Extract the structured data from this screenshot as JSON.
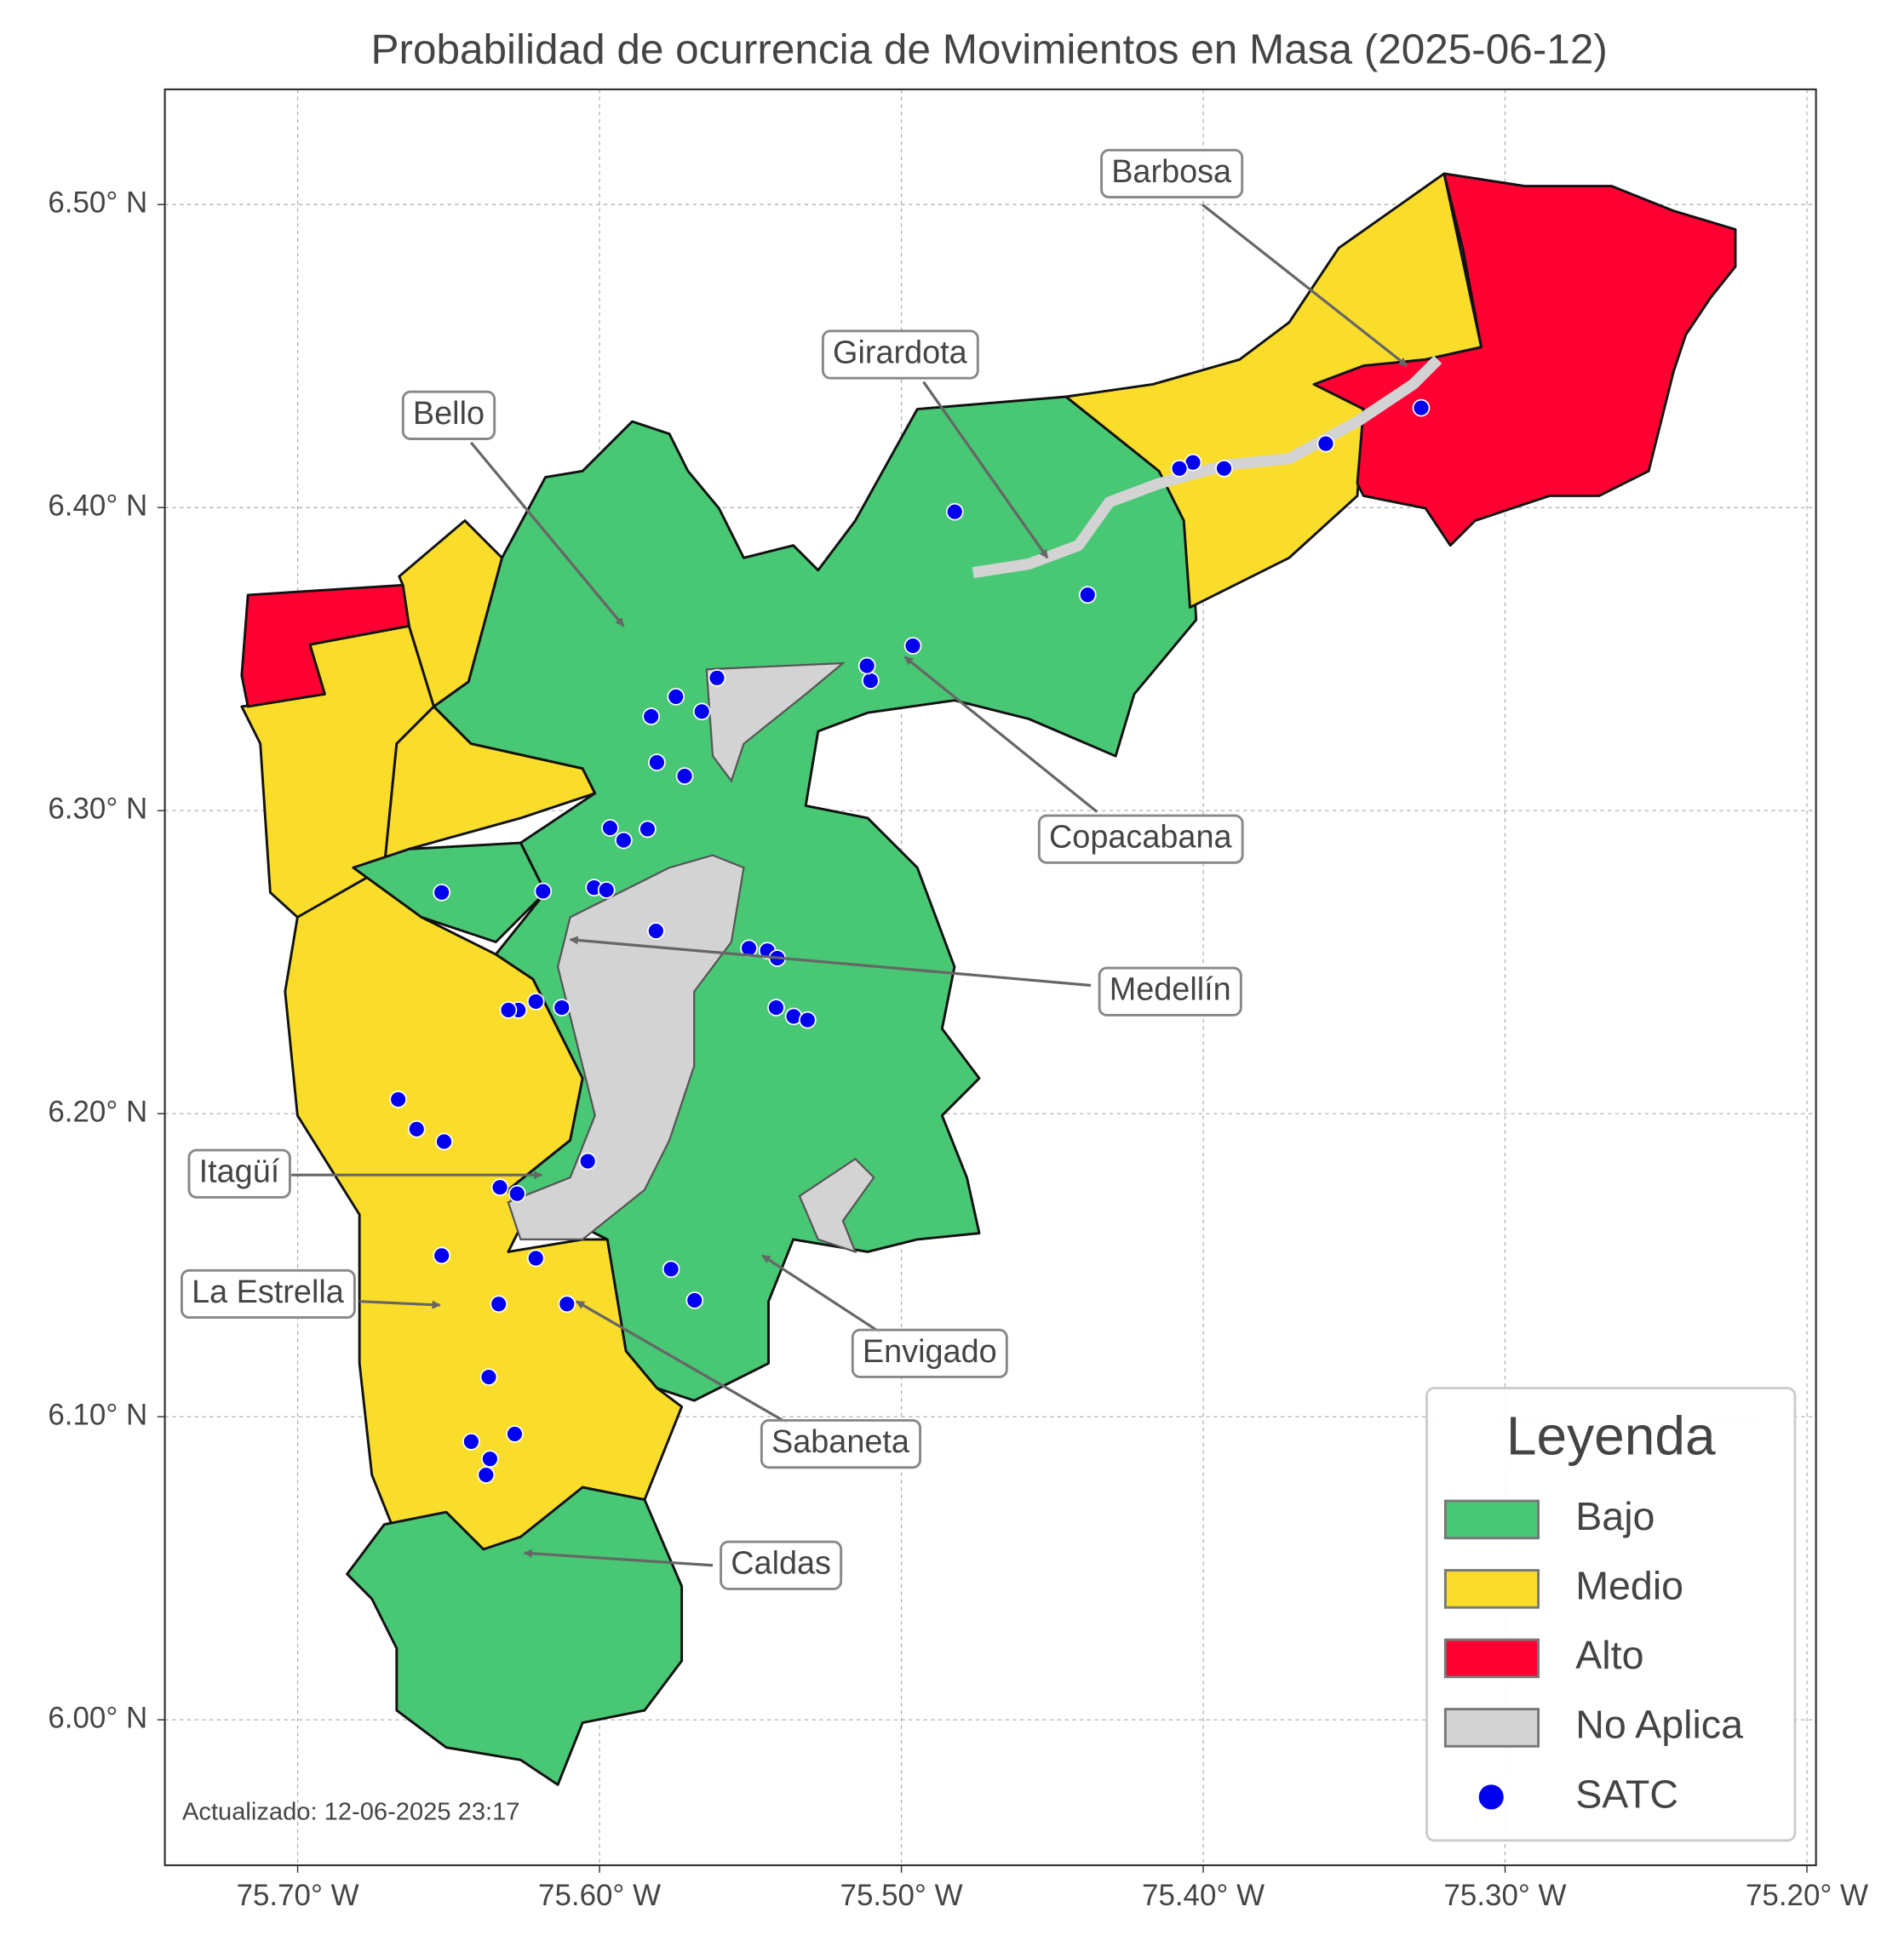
{
  "chart_data": {
    "type": "map",
    "title": "Probabilidad de ocurrencia de Movimientos en Masa (2025-06-12)",
    "xlim": [
      -75.744,
      -75.197
    ],
    "ylim": [
      5.952,
      6.538
    ],
    "xticks": [
      {
        "value": -75.7,
        "label": "75.70° W"
      },
      {
        "value": -75.6,
        "label": "75.60° W"
      },
      {
        "value": -75.5,
        "label": "75.50° W"
      },
      {
        "value": -75.4,
        "label": "75.40° W"
      },
      {
        "value": -75.3,
        "label": "75.30° W"
      },
      {
        "value": -75.2,
        "label": "75.20° W"
      }
    ],
    "yticks": [
      {
        "value": 6.0,
        "label": "6.00° N"
      },
      {
        "value": 6.1,
        "label": "6.10° N"
      },
      {
        "value": 6.2,
        "label": "6.20° N"
      },
      {
        "value": 6.3,
        "label": "6.30° N"
      },
      {
        "value": 6.4,
        "label": "6.40° N"
      },
      {
        "value": 6.5,
        "label": "6.50° N"
      }
    ],
    "grid": true,
    "annotations": [
      "Barbosa",
      "Girardota",
      "Bello",
      "Copacabana",
      "Medellín",
      "Itagüí",
      "La Estrella",
      "Envigado",
      "Sabaneta",
      "Caldas"
    ],
    "legend": {
      "title": "Leyenda",
      "loc": "lower right",
      "entries": [
        {
          "name": "Bajo",
          "color": "#48c774"
        },
        {
          "name": "Medio",
          "color": "#fadd2a"
        },
        {
          "name": "Alto",
          "color": "#ff0033"
        },
        {
          "name": "No Aplica",
          "color": "#d3d3d3"
        }
      ]
    },
    "series": [
      {
        "name": "SATC",
        "color": "#0000ee",
        "x": [
          -75.3278,
          -75.3594,
          -75.3931,
          -75.4034,
          -75.4079,
          -75.4823,
          -75.4383,
          -75.4962,
          -75.5102,
          -75.5114,
          -75.5611,
          -75.5747,
          -75.5661,
          -75.5829,
          -75.581,
          -75.5718,
          -75.5841,
          -75.5965,
          -75.592,
          -75.6523,
          -75.6187,
          -75.6018,
          -75.5977,
          -75.5813,
          -75.5505,
          -75.5444,
          -75.5411,
          -75.5415,
          -75.5357,
          -75.5311,
          -75.6211,
          -75.6269,
          -75.6302,
          -75.6125,
          -75.6667,
          -75.6606,
          -75.6515,
          -75.6039,
          -75.633,
          -75.6273,
          -75.6523,
          -75.6211,
          -75.5763,
          -75.5685,
          -75.6334,
          -75.6108,
          -75.6367,
          -75.6425,
          -75.6281,
          -75.6363,
          -75.6376
        ],
        "y": [
          6.4329,
          6.4211,
          6.4129,
          6.4149,
          6.4129,
          6.3986,
          6.3712,
          6.3544,
          6.3429,
          6.3478,
          6.3438,
          6.3376,
          6.3327,
          6.3311,
          6.3159,
          6.3114,
          6.2939,
          6.2943,
          6.2902,
          6.273,
          6.2734,
          6.2746,
          6.2738,
          6.2603,
          6.2546,
          6.2538,
          6.2513,
          6.235,
          6.2321,
          6.2309,
          6.237,
          6.2342,
          6.2342,
          6.235,
          6.2047,
          6.1949,
          6.1908,
          6.1843,
          6.1757,
          6.1736,
          6.1532,
          6.1523,
          6.1487,
          6.1384,
          6.1372,
          6.1372,
          6.1131,
          6.0918,
          6.0943,
          6.0861,
          6.0808
        ]
      }
    ],
    "footnote": "Actualizado: 12-06-2025 23:17"
  }
}
